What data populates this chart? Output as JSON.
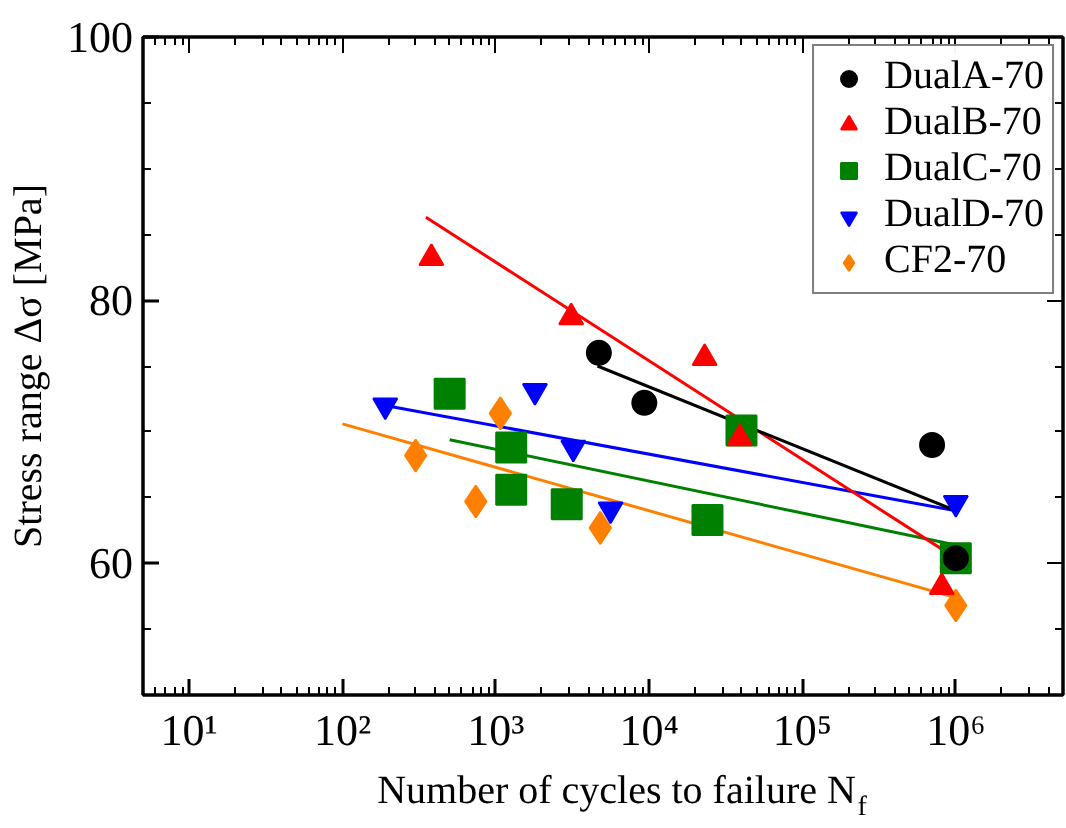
{
  "chart_data": {
    "type": "scatter",
    "xlabel": "Number of cycles to failure N$_{f}$",
    "ylabel": "Stress range Δσ [MPa]",
    "log": "x",
    "grid": false,
    "legend": "top right",
    "xlim": [
      5,
      5000000
    ],
    "ylim": [
      50,
      100
    ],
    "xticks": [
      {
        "value": 10,
        "label": "10¹"
      },
      {
        "value": 100,
        "label": "10²"
      },
      {
        "value": 1000,
        "label": "10³"
      },
      {
        "value": 10000,
        "label": "10⁴"
      },
      {
        "value": 100000,
        "label": "10⁵"
      },
      {
        "value": 1000000,
        "label": "10⁶"
      }
    ],
    "yticks": [
      60,
      80,
      100
    ],
    "series": [
      {
        "name": "DualA-70",
        "color": "#000000",
        "marker": "circle",
        "x": [
          4700,
          9300,
          700000,
          1000000
        ],
        "values": [
          76.0,
          72.2,
          69.0,
          60.4
        ]
      },
      {
        "name": "DualB-70",
        "color": "#ff0000",
        "marker": "triangle",
        "x": [
          380,
          3100,
          23000,
          39000,
          810000
        ],
        "values": [
          83.2,
          78.7,
          75.6,
          69.5,
          58.2
        ]
      },
      {
        "name": "DualC-70",
        "color": "#008000",
        "marker": "square",
        "x": [
          500,
          1260,
          1260,
          2900,
          24000,
          40000,
          1000000
        ],
        "values": [
          72.9,
          68.8,
          65.6,
          64.5,
          63.3,
          70.1,
          60.4
        ]
      },
      {
        "name": "DualD-70",
        "color": "#0000ff",
        "marker": "triangle_down",
        "x": [
          190,
          1800,
          3200,
          5600,
          1000000
        ],
        "values": [
          72.0,
          73.1,
          68.8,
          64.1,
          64.6
        ]
      },
      {
        "name": "CF2-70",
        "color": "#ff8000",
        "marker": "diamond",
        "x": [
          300,
          740,
          1070,
          4800,
          1000000
        ],
        "values": [
          68.2,
          64.7,
          71.4,
          62.7,
          56.8
        ]
      },
      {
        "type": "line",
        "color": "#000000",
        "marker": "none",
        "x": [
          4600,
          1000000
        ],
        "values": [
          75.0,
          64.0
        ]
      },
      {
        "type": "line",
        "color": "#ff0000",
        "marker": "none",
        "x": [
          350,
          1000000
        ],
        "values": [
          86.3,
          60.4
        ]
      },
      {
        "type": "line",
        "color": "#008000",
        "marker": "none",
        "x": [
          500,
          1000000
        ],
        "values": [
          69.4,
          61.4
        ]
      },
      {
        "type": "line",
        "color": "#0000ff",
        "marker": "none",
        "x": [
          190,
          1000000
        ],
        "values": [
          72.0,
          64.0
        ]
      },
      {
        "type": "line",
        "color": "#ff8000",
        "marker": "none",
        "x": [
          100,
          1000000
        ],
        "values": [
          70.6,
          57.4
        ]
      }
    ]
  }
}
